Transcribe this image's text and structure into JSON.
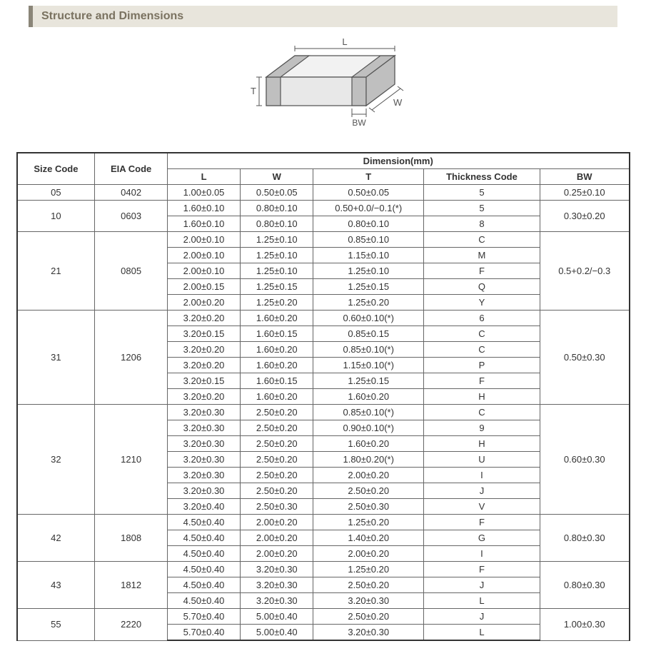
{
  "title": "Structure and Dimensions",
  "diagram": {
    "labels": {
      "L": "L",
      "W": "W",
      "T": "T",
      "BW": "BW"
    },
    "stroke": "#555555",
    "fill_top": "#f2f2f2",
    "fill_side": "#d8d8d8",
    "fill_front": "#e8e8e8",
    "bw_fill": "#bfbfbf"
  },
  "table": {
    "header": {
      "size": "Size Code",
      "eia": "EIA Code",
      "dim": "Dimension(mm)",
      "L": "L",
      "W": "W",
      "T": "T",
      "thick": "Thickness Code",
      "BW": "BW"
    },
    "groups": [
      {
        "size": "05",
        "eia": "0402",
        "bw": "0.25±0.10",
        "rows": [
          {
            "L": "1.00±0.05",
            "W": "0.50±0.05",
            "T": "0.50±0.05",
            "tc": "5"
          }
        ]
      },
      {
        "size": "10",
        "eia": "0603",
        "bw": "0.30±0.20",
        "rows": [
          {
            "L": "1.60±0.10",
            "W": "0.80±0.10",
            "T": "0.50+0.0/−0.1(*)",
            "tc": "5"
          },
          {
            "L": "1.60±0.10",
            "W": "0.80±0.10",
            "T": "0.80±0.10",
            "tc": "8"
          }
        ]
      },
      {
        "size": "21",
        "eia": "0805",
        "bw": "0.5+0.2/−0.3",
        "rows": [
          {
            "L": "2.00±0.10",
            "W": "1.25±0.10",
            "T": "0.85±0.10",
            "tc": "C"
          },
          {
            "L": "2.00±0.10",
            "W": "1.25±0.10",
            "T": "1.15±0.10",
            "tc": "M"
          },
          {
            "L": "2.00±0.10",
            "W": "1.25±0.10",
            "T": "1.25±0.10",
            "tc": "F"
          },
          {
            "L": "2.00±0.15",
            "W": "1.25±0.15",
            "T": "1.25±0.15",
            "tc": "Q"
          },
          {
            "L": "2.00±0.20",
            "W": "1.25±0.20",
            "T": "1.25±0.20",
            "tc": "Y"
          }
        ]
      },
      {
        "size": "31",
        "eia": "1206",
        "bw": "0.50±0.30",
        "rows": [
          {
            "L": "3.20±0.20",
            "W": "1.60±0.20",
            "T": "0.60±0.10(*)",
            "tc": "6"
          },
          {
            "L": "3.20±0.15",
            "W": "1.60±0.15",
            "T": "0.85±0.15",
            "tc": "C"
          },
          {
            "L": "3.20±0.20",
            "W": "1.60±0.20",
            "T": "0.85±0.10(*)",
            "tc": "C"
          },
          {
            "L": "3.20±0.20",
            "W": "1.60±0.20",
            "T": "1.15±0.10(*)",
            "tc": "P"
          },
          {
            "L": "3.20±0.15",
            "W": "1.60±0.15",
            "T": "1.25±0.15",
            "tc": "F"
          },
          {
            "L": "3.20±0.20",
            "W": "1.60±0.20",
            "T": "1.60±0.20",
            "tc": "H"
          }
        ]
      },
      {
        "size": "32",
        "eia": "1210",
        "bw": "0.60±0.30",
        "rows": [
          {
            "L": "3.20±0.30",
            "W": "2.50±0.20",
            "T": "0.85±0.10(*)",
            "tc": "C"
          },
          {
            "L": "3.20±0.30",
            "W": "2.50±0.20",
            "T": "0.90±0.10(*)",
            "tc": "9"
          },
          {
            "L": "3.20±0.30",
            "W": "2.50±0.20",
            "T": "1.60±0.20",
            "tc": "H"
          },
          {
            "L": "3.20±0.30",
            "W": "2.50±0.20",
            "T": "1.80±0.20(*)",
            "tc": "U"
          },
          {
            "L": "3.20±0.30",
            "W": "2.50±0.20",
            "T": "2.00±0.20",
            "tc": "I"
          },
          {
            "L": "3.20±0.30",
            "W": "2.50±0.20",
            "T": "2.50±0.20",
            "tc": "J"
          },
          {
            "L": "3.20±0.40",
            "W": "2.50±0.30",
            "T": "2.50±0.30",
            "tc": "V"
          }
        ]
      },
      {
        "size": "42",
        "eia": "1808",
        "bw": "0.80±0.30",
        "rows": [
          {
            "L": "4.50±0.40",
            "W": "2.00±0.20",
            "T": "1.25±0.20",
            "tc": "F"
          },
          {
            "L": "4.50±0.40",
            "W": "2.00±0.20",
            "T": "1.40±0.20",
            "tc": "G"
          },
          {
            "L": "4.50±0.40",
            "W": "2.00±0.20",
            "T": "2.00±0.20",
            "tc": "I"
          }
        ]
      },
      {
        "size": "43",
        "eia": "1812",
        "bw": "0.80±0.30",
        "rows": [
          {
            "L": "4.50±0.40",
            "W": "3.20±0.30",
            "T": "1.25±0.20",
            "tc": "F"
          },
          {
            "L": "4.50±0.40",
            "W": "3.20±0.30",
            "T": "2.50±0.20",
            "tc": "J"
          },
          {
            "L": "4.50±0.40",
            "W": "3.20±0.30",
            "T": "3.20±0.30",
            "tc": "L"
          }
        ]
      },
      {
        "size": "55",
        "eia": "2220",
        "bw": "1.00±0.30",
        "rows": [
          {
            "L": "5.70±0.40",
            "W": "5.00±0.40",
            "T": "2.50±0.20",
            "tc": "J"
          },
          {
            "L": "5.70±0.40",
            "W": "5.00±0.40",
            "T": "3.20±0.30",
            "tc": "L"
          }
        ]
      }
    ]
  }
}
